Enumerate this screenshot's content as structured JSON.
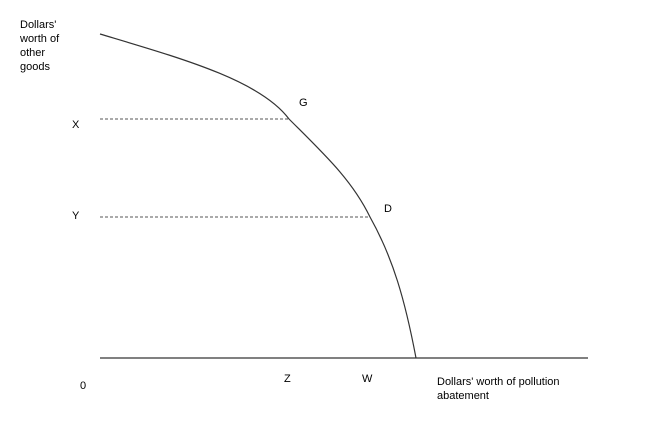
{
  "diagram": {
    "y_axis_label_lines": [
      "Dollars'",
      "worth of",
      "other",
      "goods"
    ],
    "x_axis_label_lines": [
      "Dollars' worth of pollution",
      "abatement"
    ],
    "origin_label": "0",
    "y_tick_labels": {
      "x": "X",
      "y": "Y"
    },
    "x_tick_labels": {
      "z": "Z",
      "w": "W"
    },
    "points": {
      "g": "G",
      "d": "D"
    },
    "colors": {
      "curve": "#333333",
      "axis": "#000000",
      "guides": "#555555"
    }
  }
}
